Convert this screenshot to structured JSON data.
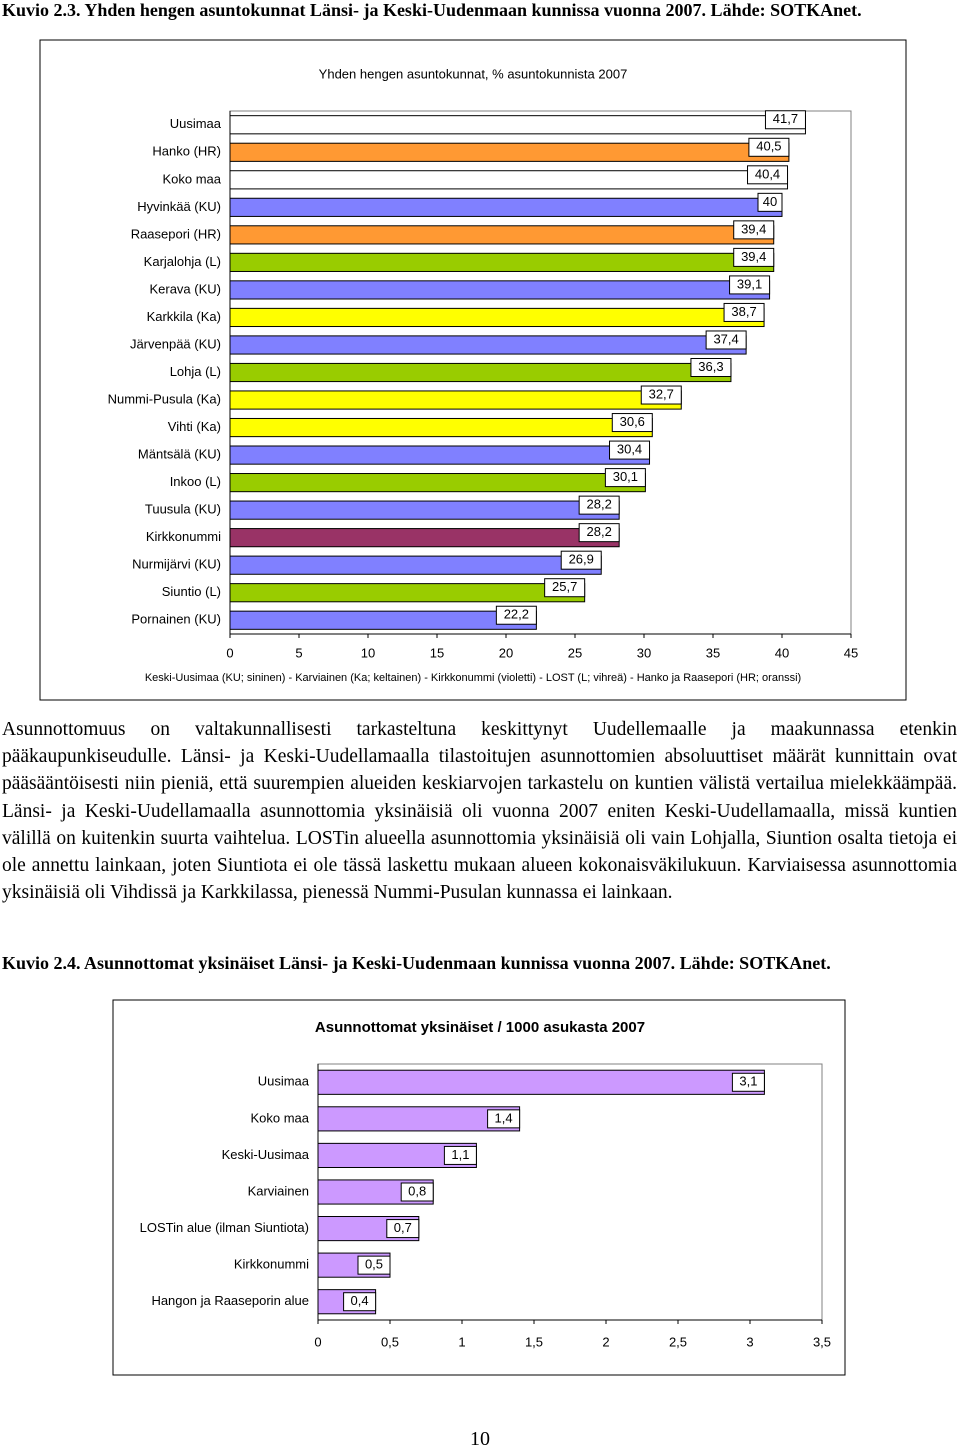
{
  "caption_1": "Kuvio 2.3. Yhden hengen asuntokunnat Länsi- ja Keski-Uudenmaan kunnissa vuonna 2007. Lähde: SOTKAnet.",
  "chart_data": [
    {
      "type": "bar",
      "title": "Yhden hengen asuntokunnat, % asuntokunnista 2007",
      "categories": [
        "Uusimaa",
        "Hanko (HR)",
        "Koko maa",
        "Hyvinkää (KU)",
        "Raasepori (HR)",
        "Karjalohja (L)",
        "Kerava (KU)",
        "Karkkila (Ka)",
        "Järvenpää (KU)",
        "Lohja (L)",
        "Nummi-Pusula (Ka)",
        "Vihti (Ka)",
        "Mäntsälä (KU)",
        "Inkoo (L)",
        "Tuusula (KU)",
        "Kirkkonummi",
        "Nurmijärvi (KU)",
        "Siuntio (L)",
        "Pornainen (KU)"
      ],
      "values": [
        41.7,
        40.5,
        40.4,
        40,
        39.4,
        39.4,
        39.1,
        38.7,
        37.4,
        36.3,
        32.7,
        30.6,
        30.4,
        30.1,
        28.2,
        28.2,
        26.9,
        25.7,
        22.2
      ],
      "value_labels": [
        "41,7",
        "40,5",
        "40,4",
        "40",
        "39,4",
        "39,4",
        "39,1",
        "38,7",
        "37,4",
        "36,3",
        "32,7",
        "30,6",
        "30,4",
        "30,1",
        "28,2",
        "28,2",
        "26,9",
        "25,7",
        "22,2"
      ],
      "colors": [
        "#ffffff",
        "#ff9933",
        "#ffffff",
        "#8080ff",
        "#ff9933",
        "#99cc00",
        "#8080ff",
        "#ffff00",
        "#8080ff",
        "#99cc00",
        "#ffff00",
        "#ffff00",
        "#8080ff",
        "#99cc00",
        "#8080ff",
        "#993366",
        "#8080ff",
        "#99cc00",
        "#8080ff"
      ],
      "xlim": [
        0,
        45
      ],
      "xticks": [
        0,
        5,
        10,
        15,
        20,
        25,
        30,
        35,
        40,
        45
      ],
      "note": "Keski-Uusimaa (KU; sininen) - Karviainen (Ka; keltainen) - Kirkkonummi (violetti) - LOST (L; vihreä) - Hanko ja Raasepori (HR; oranssi)"
    },
    {
      "type": "bar",
      "title": "Asunnottomat yksinäiset / 1000 asukasta 2007",
      "categories": [
        "Uusimaa",
        "Koko maa",
        "Keski-Uusimaa",
        "Karviainen",
        "LOSTin alue (ilman Siuntiota)",
        "Kirkkonummi",
        "Hangon ja Raaseporin alue"
      ],
      "values": [
        3.1,
        1.4,
        1.1,
        0.8,
        0.7,
        0.5,
        0.4
      ],
      "value_labels": [
        "3,1",
        "1,4",
        "1,1",
        "0,8",
        "0,7",
        "0,5",
        "0,4"
      ],
      "color": "#cc99ff",
      "xlim": [
        0,
        3.5
      ],
      "xticks": [
        0,
        {
          "value": 0.5,
          "label": "0,5"
        },
        1,
        {
          "value": 1.5,
          "label": "1,5"
        },
        2,
        {
          "value": 2.5,
          "label": "2,5"
        },
        3,
        {
          "value": 3.5,
          "label": "3,5"
        }
      ]
    }
  ],
  "paragraph": "Asunnottomuus on valtakunnallisesti tarkasteltuna keskittynyt Uudellemaalle ja maakunnassa etenkin pääkaupunkiseudulle. Länsi- ja Keski-Uudellamaalla tilastoitujen asunnottomien absoluuttiset määrät kunnittain ovat pääsääntöisesti niin pieniä, että suurempien alueiden keskiarvojen tarkastelu on kuntien välistä vertailua mielekkäämpää. Länsi- ja Keski-Uudellamaalla asunnottomia yksinäisiä oli vuonna 2007 eniten Keski-Uudellamaalla, missä kuntien välillä on kuitenkin suurta vaihtelua. LOSTin alueella asunnottomia yksinäisiä oli vain Lohjalla, Siuntion osalta tietoja ei ole annettu lainkaan, joten Siuntiota ei ole tässä laskettu mukaan alueen kokonaisväkilukuun. Karviaisessa asunnottomia yksinäisiä oli Vihdissä ja Karkkilassa, pienessä Nummi-Pusulan kunnassa ei lainkaan.",
  "caption_2": "Kuvio 2.4. Asunnottomat yksinäiset Länsi- ja Keski-Uudenmaan kunnissa vuonna 2007. Lähde: SOTKAnet.",
  "page_number": "10"
}
